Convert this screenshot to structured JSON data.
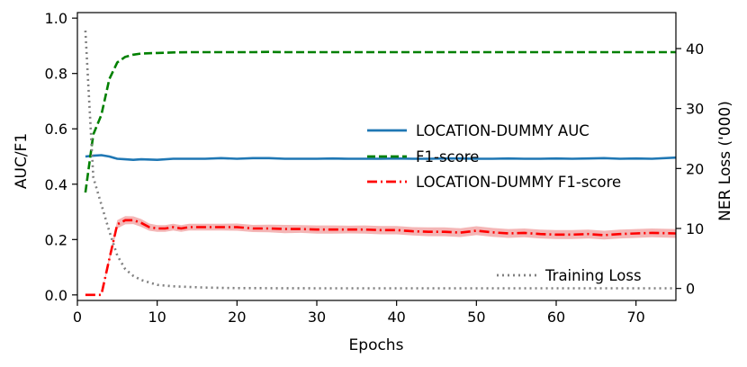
{
  "chart_data": {
    "type": "line",
    "xlabel": "Epochs",
    "ylabel_left": "AUC/F1",
    "ylabel_right": "NER Loss ('000)",
    "xlim": [
      0,
      75
    ],
    "ylim_left": [
      -0.02,
      1.02
    ],
    "ylim_right": [
      -2,
      46
    ],
    "x_ticks": [
      0,
      10,
      20,
      30,
      40,
      50,
      60,
      70
    ],
    "y_ticks_left": [
      0.0,
      0.2,
      0.4,
      0.6,
      0.8,
      1.0
    ],
    "y_ticks_right": [
      0,
      10,
      20,
      30,
      40
    ],
    "tick_labels": {
      "x": [
        "0",
        "10",
        "20",
        "30",
        "40",
        "50",
        "60",
        "70"
      ],
      "left": [
        "0.0",
        "0.2",
        "0.4",
        "0.6",
        "0.8",
        "1.0"
      ],
      "right": [
        "0",
        "10",
        "20",
        "30",
        "40"
      ]
    },
    "grid": false,
    "legend_upper": {
      "placement": "center-right",
      "entries": [
        "LOCATION-DUMMY AUC",
        "F1-score",
        "LOCATION-DUMMY F1-score"
      ]
    },
    "legend_lower": {
      "placement": "lower-right",
      "entries": [
        "Training Loss"
      ]
    },
    "series": [
      {
        "name": "LOCATION-DUMMY AUC",
        "axis": "left",
        "color": "#1f77b4",
        "style": "solid",
        "x": [
          1,
          2,
          3,
          4,
          5,
          6,
          7,
          8,
          10,
          12,
          14,
          16,
          18,
          20,
          22,
          24,
          26,
          28,
          30,
          32,
          34,
          36,
          38,
          40,
          42,
          44,
          46,
          48,
          50,
          52,
          54,
          56,
          58,
          60,
          62,
          64,
          66,
          68,
          70,
          72,
          75
        ],
        "y": [
          0.5,
          0.503,
          0.505,
          0.5,
          0.492,
          0.49,
          0.488,
          0.49,
          0.488,
          0.492,
          0.492,
          0.492,
          0.494,
          0.492,
          0.494,
          0.494,
          0.492,
          0.492,
          0.492,
          0.493,
          0.492,
          0.492,
          0.492,
          0.493,
          0.492,
          0.492,
          0.493,
          0.493,
          0.492,
          0.492,
          0.493,
          0.492,
          0.492,
          0.493,
          0.492,
          0.493,
          0.494,
          0.492,
          0.493,
          0.492,
          0.496
        ]
      },
      {
        "name": "F1-score",
        "axis": "left",
        "color": "#008000",
        "style": "dashed",
        "x": [
          1,
          2,
          3,
          4,
          5,
          6,
          7,
          8,
          9,
          10,
          12,
          14,
          16,
          18,
          20,
          22,
          24,
          26,
          28,
          30,
          35,
          40,
          45,
          50,
          55,
          60,
          65,
          70,
          75
        ],
        "y": [
          0.37,
          0.58,
          0.65,
          0.78,
          0.84,
          0.86,
          0.868,
          0.872,
          0.873,
          0.874,
          0.876,
          0.877,
          0.877,
          0.877,
          0.877,
          0.877,
          0.878,
          0.877,
          0.877,
          0.877,
          0.877,
          0.877,
          0.877,
          0.877,
          0.877,
          0.877,
          0.877,
          0.877,
          0.877
        ]
      },
      {
        "name": "LOCATION-DUMMY F1-score",
        "axis": "left",
        "color": "#ff0000",
        "band_color": "#f4b6b6",
        "style": "dashdot",
        "x": [
          1,
          2,
          3,
          4,
          5,
          6,
          7,
          8,
          9,
          10,
          11,
          12,
          13,
          14,
          15,
          16,
          18,
          20,
          22,
          24,
          26,
          28,
          30,
          32,
          34,
          36,
          38,
          40,
          42,
          44,
          46,
          48,
          50,
          52,
          54,
          56,
          58,
          60,
          62,
          64,
          66,
          68,
          70,
          72,
          75
        ],
        "y": [
          0.0,
          0.0,
          0.0,
          0.13,
          0.255,
          0.27,
          0.27,
          0.26,
          0.245,
          0.24,
          0.24,
          0.245,
          0.24,
          0.245,
          0.245,
          0.245,
          0.245,
          0.245,
          0.24,
          0.24,
          0.238,
          0.238,
          0.236,
          0.236,
          0.236,
          0.236,
          0.234,
          0.234,
          0.23,
          0.228,
          0.228,
          0.225,
          0.232,
          0.226,
          0.222,
          0.224,
          0.22,
          0.218,
          0.218,
          0.22,
          0.216,
          0.22,
          0.222,
          0.224,
          0.222
        ],
        "band": [
          0.0,
          0.0,
          0.0,
          0.01,
          0.015,
          0.015,
          0.014,
          0.014,
          0.013,
          0.012,
          0.012,
          0.012,
          0.012,
          0.012,
          0.012,
          0.012,
          0.012,
          0.013,
          0.013,
          0.014,
          0.015,
          0.014,
          0.015,
          0.015,
          0.014,
          0.015,
          0.015,
          0.015,
          0.015,
          0.016,
          0.016,
          0.016,
          0.016,
          0.016,
          0.016,
          0.016,
          0.016,
          0.016,
          0.016,
          0.016,
          0.016,
          0.016,
          0.016,
          0.016,
          0.016
        ]
      },
      {
        "name": "Training Loss",
        "axis": "right",
        "color": "#808080",
        "style": "dotted",
        "x": [
          1,
          2,
          3,
          4,
          5,
          6,
          7,
          8,
          9,
          10,
          12,
          14,
          16,
          18,
          20,
          25,
          30,
          40,
          50,
          60,
          70,
          75
        ],
        "y": [
          43.0,
          18.5,
          14.0,
          9.5,
          5.5,
          3.2,
          2.1,
          1.4,
          1.0,
          0.6,
          0.35,
          0.25,
          0.15,
          0.1,
          0.06,
          0.04,
          0.03,
          0.02,
          0.02,
          0.02,
          0.02,
          0.02
        ]
      }
    ]
  }
}
